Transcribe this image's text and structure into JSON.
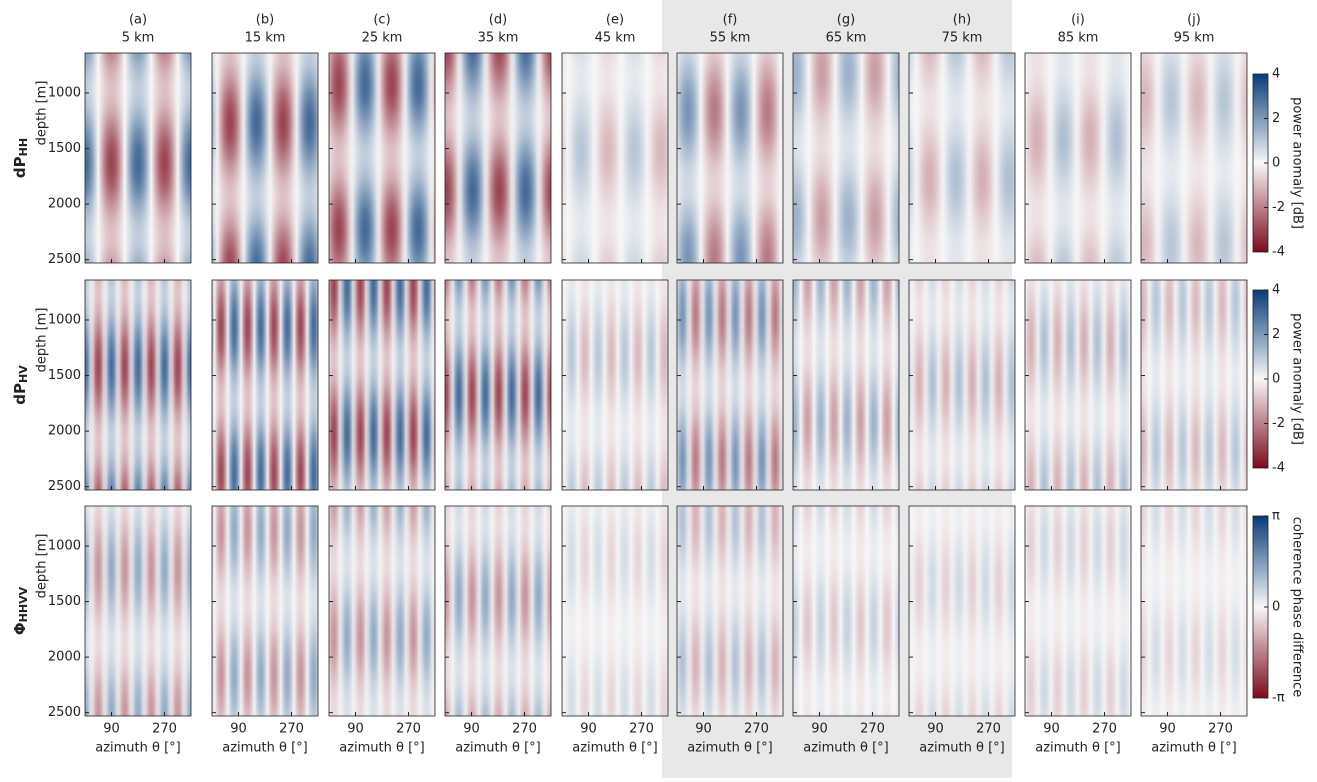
{
  "chart_data": {
    "type": "heatmap",
    "columns": [
      {
        "letter": "(a)",
        "distance": "5 km"
      },
      {
        "letter": "(b)",
        "distance": "15 km"
      },
      {
        "letter": "(c)",
        "distance": "25 km"
      },
      {
        "letter": "(d)",
        "distance": "35 km"
      },
      {
        "letter": "(e)",
        "distance": "45 km"
      },
      {
        "letter": "(f)",
        "distance": "55 km"
      },
      {
        "letter": "(g)",
        "distance": "65 km"
      },
      {
        "letter": "(h)",
        "distance": "75 km"
      },
      {
        "letter": "(i)",
        "distance": "85 km"
      },
      {
        "letter": "(j)",
        "distance": "95 km"
      }
    ],
    "rows": [
      {
        "label": {
          "main": "dP",
          "sub": "HH"
        },
        "ylabel": "depth [m]",
        "colorbar": {
          "label": "power anomaly [dB]",
          "lim": [
            -4,
            4
          ],
          "ticks": [
            4,
            2,
            0,
            -2,
            -4
          ]
        }
      },
      {
        "label": {
          "main": "dP",
          "sub": "HV"
        },
        "ylabel": "depth [m]",
        "colorbar": {
          "label": "power anomaly [dB]",
          "lim": [
            -4,
            4
          ],
          "ticks": [
            4,
            2,
            0,
            -2,
            -4
          ]
        }
      },
      {
        "label": {
          "main": "Φ",
          "sub": "HHVV"
        },
        "ylabel": "depth [m]",
        "colorbar": {
          "label": "coherence phase difference",
          "lim": [
            -3.14159,
            3.14159
          ],
          "ticks": [
            {
              "value": 3.14159,
              "label": "π"
            },
            0,
            {
              "value": -3.14159,
              "label": "-π"
            }
          ]
        }
      }
    ],
    "xlabel": "azimuth θ [°]",
    "xlim": [
      0,
      360
    ],
    "xticks": [
      90,
      270
    ],
    "ylim": [
      640,
      2530
    ],
    "yticks": [
      1000,
      1500,
      2000,
      2500
    ]
  }
}
